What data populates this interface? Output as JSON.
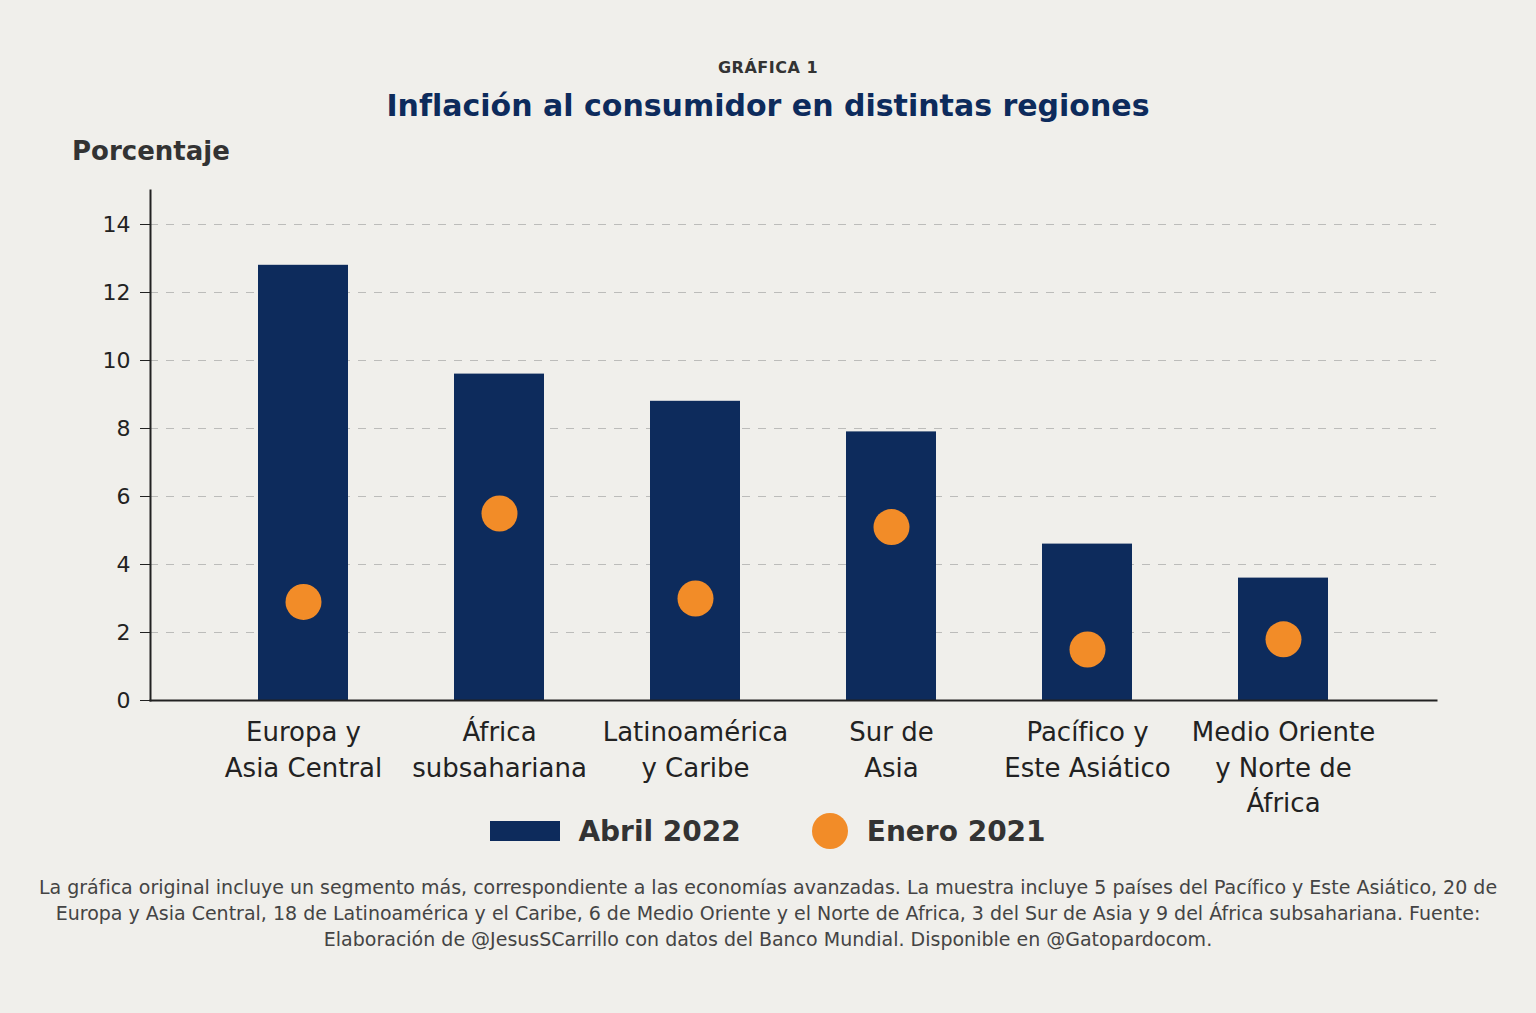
{
  "chart_data": {
    "type": "bar",
    "figure_label": "GRÁFICA 1",
    "title": "Inflación al consumidor en distintas regiones",
    "y_label": "Porcentaje",
    "categories": [
      "Europa y\nAsia Central",
      "África\nsubsahariana",
      "Latinoamérica\ny Caribe",
      "Sur de\nAsia",
      "Pacífico y\nEste Asiático",
      "Medio Oriente\ny Norte de\nÁfrica"
    ],
    "series": [
      {
        "name": "Abril 2022",
        "type": "bar",
        "color": "#0d2b5c",
        "values": [
          12.8,
          9.6,
          8.8,
          7.9,
          4.6,
          3.6
        ]
      },
      {
        "name": "Enero 2021",
        "type": "scatter",
        "marker": "circle",
        "color": "#f28c28",
        "values": [
          2.9,
          5.5,
          3.0,
          5.1,
          1.5,
          1.8
        ]
      }
    ],
    "ylim": [
      0,
      15
    ],
    "yticks": [
      0,
      2,
      4,
      6,
      8,
      10,
      12,
      14
    ],
    "grid": true,
    "legend": "bottom",
    "note": "La gráfica original incluye un segmento más, correspondiente a las economías avanzadas. La muestra incluye 5 países del Pacífico y Este Asiático, 20 de Europa y Asia Central, 18 de Latinoamérica y el Caribe, 6 de Medio Oriente y el Norte de Africa, 3 del Sur de Asia y 9 del África subsahariana. Fuente: Elaboración de @JesusSCarrillo con datos del Banco Mundial. Disponible en @Gatopardocom."
  }
}
